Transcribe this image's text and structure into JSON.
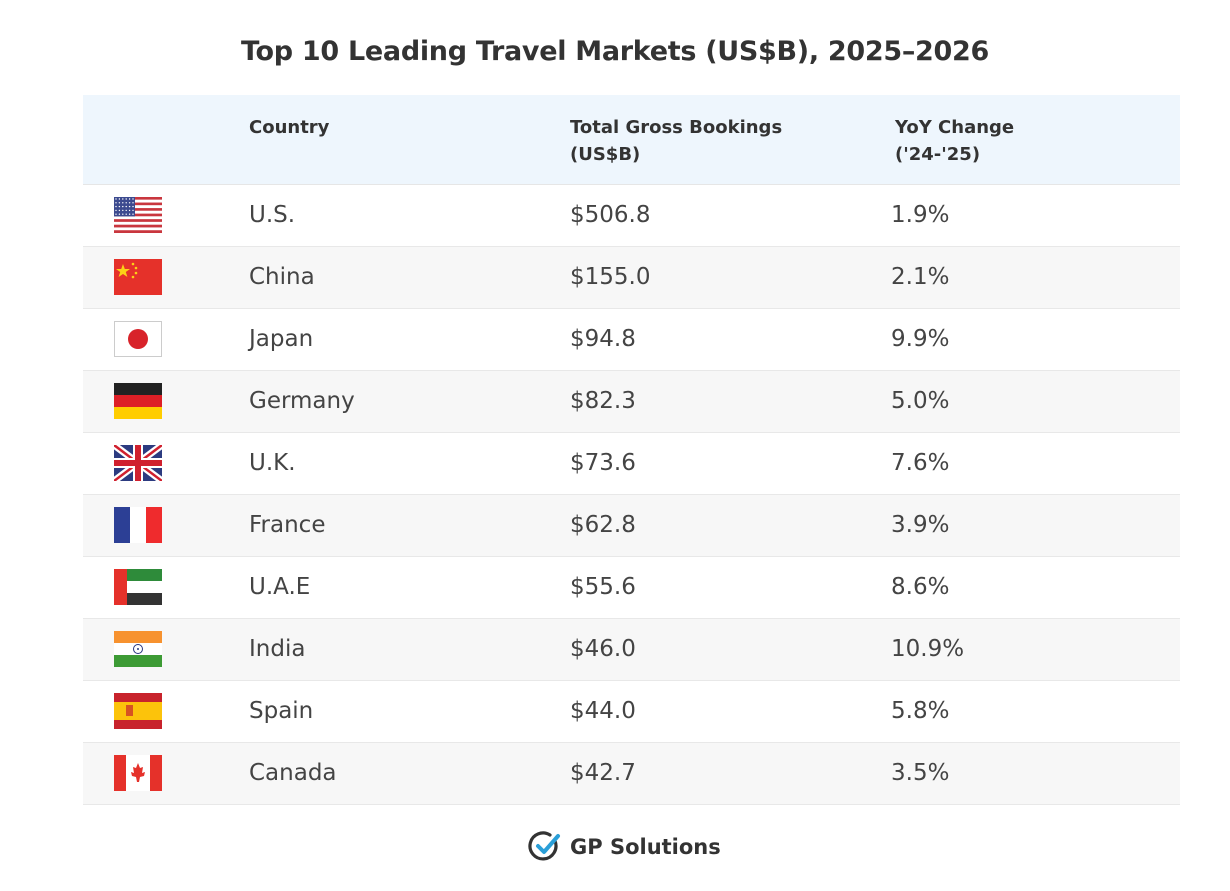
{
  "chart_data": {
    "type": "table",
    "title": "Top 10 Leading Travel Markets (US$B), 2025–2026",
    "columns": [
      "Country",
      "Total Gross Bookings\n(US$B)",
      "YoY Change\n('24-'25)"
    ],
    "rows": [
      {
        "flag": "us",
        "country": "U.S.",
        "bookings": "$506.8",
        "yoy": "1.9%"
      },
      {
        "flag": "cn",
        "country": "China",
        "bookings": "$155.0",
        "yoy": "2.1%"
      },
      {
        "flag": "jp",
        "country": "Japan",
        "bookings": "$94.8",
        "yoy": "9.9%"
      },
      {
        "flag": "de",
        "country": "Germany",
        "bookings": "$82.3",
        "yoy": "5.0%"
      },
      {
        "flag": "uk",
        "country": "U.K.",
        "bookings": "$73.6",
        "yoy": "7.6%"
      },
      {
        "flag": "fr",
        "country": "France",
        "bookings": "$62.8",
        "yoy": "3.9%"
      },
      {
        "flag": "ae",
        "country": "U.A.E",
        "bookings": "$55.6",
        "yoy": "8.6%"
      },
      {
        "flag": "in",
        "country": "India",
        "bookings": "$46.0",
        "yoy": "10.9%"
      },
      {
        "flag": "es",
        "country": "Spain",
        "bookings": "$44.0",
        "yoy": "5.8%"
      },
      {
        "flag": "ca",
        "country": "Canada",
        "bookings": "$42.7",
        "yoy": "3.5%"
      }
    ]
  },
  "colors": {
    "header_bg": "#eef6fd",
    "stripe_bg": "#f7f7f7",
    "logo_check": "#2a9fd8"
  },
  "logo": {
    "text": "GP Solutions",
    "icon": "check-circle-icon"
  }
}
